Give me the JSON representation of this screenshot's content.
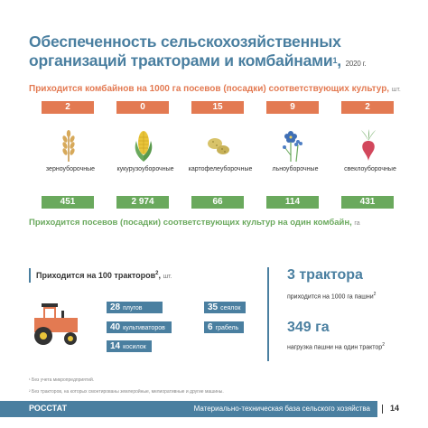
{
  "title": {
    "line1": "Обеспеченность сельскохозяйственных",
    "line2": "организаций тракторами и комбайнами",
    "sup": "1",
    "year": "2020 г."
  },
  "combines_header": {
    "text": "Приходится комбайнов на 1000 га посевов (посадки) соответствующих культур,",
    "unit": "шт."
  },
  "crops": [
    {
      "top": "2",
      "label": "зерноуборочные",
      "bottom": "451",
      "icon": "wheat-icon"
    },
    {
      "top": "0",
      "label": "кукурузоуборочные",
      "bottom": "2 974",
      "icon": "corn-icon"
    },
    {
      "top": "15",
      "label": "картофелеуборочные",
      "bottom": "66",
      "icon": "potato-icon"
    },
    {
      "top": "9",
      "label": "льноуборочные",
      "bottom": "114",
      "icon": "flax-icon"
    },
    {
      "top": "2",
      "label": "свеклоуборочные",
      "bottom": "431",
      "icon": "beet-icon"
    }
  ],
  "crops_header": {
    "text": "Приходится посевов (посадки) соответствующих культур на один комбайн,",
    "unit": "га"
  },
  "tractors": {
    "header": "Приходится на 100 тракторов",
    "sup": "2",
    "unit": "шт.",
    "items": [
      {
        "value": "28",
        "label": "плугов"
      },
      {
        "value": "35",
        "label": "сеялок"
      },
      {
        "value": "40",
        "label": "культиваторов"
      },
      {
        "value": "6",
        "label": "грабель"
      },
      {
        "value": "14",
        "label": "косилок"
      }
    ]
  },
  "right": {
    "big1": "3 трактора",
    "small1": "приходится на 1000 га пашни",
    "small1_sup": "2",
    "big2": "349 га",
    "small2": "нагрузка пашни на один трактор",
    "small2_sup": "2"
  },
  "footnotes": [
    "¹ Без учета микропредприятий.",
    "² Без тракторов, на которых смонтированы землеройные, мелиоративные и другие машины."
  ],
  "footer": {
    "brand": "РОССТАТ",
    "text": "Материально-техническая база сельского хозяйства",
    "page": "14"
  },
  "colors": {
    "blue": "#4a7fa0",
    "orange": "#e37a52",
    "green": "#6aa95d"
  }
}
